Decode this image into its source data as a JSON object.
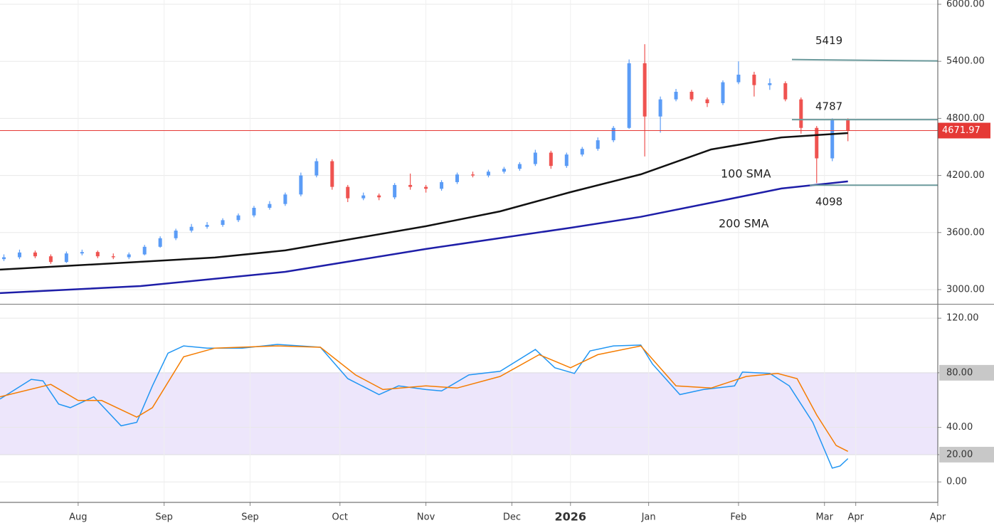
{
  "chart_data": [
    {
      "type": "candlestick",
      "xlim": [
        0,
        240
      ],
      "ylim": [
        2850,
        6045
      ],
      "yticks": [
        {
          "value": 3000,
          "label": "3000.00"
        },
        {
          "value": 3600,
          "label": "3600.00"
        },
        {
          "value": 4200,
          "label": "4200.00"
        },
        {
          "value": 4800,
          "label": "4800.00"
        },
        {
          "value": 5400,
          "label": "5400.00"
        },
        {
          "value": 6000,
          "label": "6000.00"
        }
      ],
      "grid": true,
      "up_color": "#5b9cf6",
      "down_color": "#ef5350",
      "x": [
        1,
        5,
        9,
        13,
        17,
        21,
        25,
        29,
        33,
        37,
        41,
        45,
        49,
        53,
        57,
        61,
        65,
        69,
        73,
        77,
        81,
        85,
        89,
        93,
        97,
        101,
        105,
        109,
        113,
        117,
        121,
        125,
        129,
        133,
        137,
        141,
        145,
        149,
        153,
        157,
        161,
        165,
        169,
        173,
        177,
        181,
        185,
        189,
        193,
        197,
        201,
        205,
        209,
        213,
        217
      ],
      "ohlc": [
        [
          3320,
          3370,
          3300,
          3340
        ],
        [
          3340,
          3420,
          3320,
          3390
        ],
        [
          3390,
          3410,
          3330,
          3350
        ],
        [
          3350,
          3370,
          3270,
          3290
        ],
        [
          3290,
          3400,
          3280,
          3380
        ],
        [
          3380,
          3420,
          3360,
          3395
        ],
        [
          3395,
          3410,
          3330,
          3350
        ],
        [
          3350,
          3380,
          3320,
          3340
        ],
        [
          3340,
          3390,
          3320,
          3370
        ],
        [
          3370,
          3470,
          3360,
          3450
        ],
        [
          3450,
          3560,
          3440,
          3540
        ],
        [
          3540,
          3640,
          3520,
          3620
        ],
        [
          3620,
          3690,
          3600,
          3660
        ],
        [
          3660,
          3710,
          3640,
          3680
        ],
        [
          3680,
          3750,
          3660,
          3730
        ],
        [
          3730,
          3800,
          3710,
          3780
        ],
        [
          3780,
          3880,
          3760,
          3860
        ],
        [
          3860,
          3930,
          3840,
          3900
        ],
        [
          3900,
          4020,
          3880,
          4000
        ],
        [
          4000,
          4230,
          3980,
          4200
        ],
        [
          4200,
          4380,
          4180,
          4350
        ],
        [
          4350,
          4370,
          4050,
          4080
        ],
        [
          4080,
          4100,
          3920,
          3960
        ],
        [
          3960,
          4020,
          3940,
          3990
        ],
        [
          3990,
          4010,
          3940,
          3970
        ],
        [
          3970,
          4120,
          3950,
          4100
        ],
        [
          4100,
          4220,
          4050,
          4080
        ],
        [
          4080,
          4100,
          4020,
          4060
        ],
        [
          4060,
          4150,
          4040,
          4130
        ],
        [
          4130,
          4230,
          4110,
          4210
        ],
        [
          4210,
          4240,
          4180,
          4200
        ],
        [
          4200,
          4260,
          4180,
          4240
        ],
        [
          4240,
          4290,
          4220,
          4270
        ],
        [
          4270,
          4340,
          4250,
          4320
        ],
        [
          4320,
          4470,
          4300,
          4440
        ],
        [
          4440,
          4460,
          4270,
          4300
        ],
        [
          4300,
          4440,
          4280,
          4420
        ],
        [
          4420,
          4500,
          4400,
          4480
        ],
        [
          4480,
          4600,
          4460,
          4570
        ],
        [
          4570,
          4720,
          4550,
          4700
        ],
        [
          4700,
          5420,
          4690,
          5380
        ],
        [
          5380,
          5580,
          4400,
          4820
        ],
        [
          4820,
          5030,
          4650,
          5000
        ],
        [
          5000,
          5110,
          4980,
          5080
        ],
        [
          5080,
          5100,
          4980,
          5000
        ],
        [
          5000,
          5020,
          4920,
          4960
        ],
        [
          4960,
          5200,
          4940,
          5180
        ],
        [
          5180,
          5400,
          5160,
          5260
        ],
        [
          5260,
          5290,
          5030,
          5150
        ],
        [
          5150,
          5220,
          5100,
          5170
        ],
        [
          5170,
          5190,
          4980,
          5000
        ],
        [
          5000,
          5020,
          4640,
          4700
        ],
        [
          4700,
          4720,
          4120,
          4380
        ],
        [
          4380,
          4800,
          4350,
          4780
        ],
        [
          4780,
          4800,
          4560,
          4672
        ]
      ],
      "series": [
        {
          "name": "100 SMA",
          "color": "#111111",
          "x": [
            0,
            36,
            55,
            73,
            91,
            109,
            128,
            146,
            164,
            182,
            200,
            217
          ],
          "values": [
            3210,
            3292,
            3337,
            3412,
            3539,
            3666,
            3823,
            4025,
            4212,
            4474,
            4600,
            4646
          ]
        },
        {
          "name": "200 SMA",
          "color": "#1e1ea8",
          "label_color": "#6b9a9c",
          "x": [
            0,
            36,
            73,
            109,
            146,
            164,
            182,
            200,
            217
          ],
          "values": [
            2963,
            3037,
            3187,
            3427,
            3650,
            3765,
            3913,
            4063,
            4138
          ]
        }
      ],
      "levels": [
        5419,
        4787,
        4098
      ],
      "level_color": "#6b9a9c",
      "last_price": 4671.97,
      "last_price_color": "#e53935"
    },
    {
      "type": "line",
      "xlim": [
        0,
        240
      ],
      "ylim": [
        -15,
        130
      ],
      "yticks": [
        {
          "value": 0,
          "label": "0.00"
        },
        {
          "value": 20,
          "label": "20.00"
        },
        {
          "value": 40,
          "label": "40.00"
        },
        {
          "value": 80,
          "label": "80.00"
        },
        {
          "value": 120,
          "label": "120.00"
        }
      ],
      "band": [
        20,
        80
      ],
      "band_color": "#ede6fb",
      "xticks": [
        {
          "value": 20,
          "label": "Aug"
        },
        {
          "value": 42,
          "label": "Sep"
        },
        {
          "value": 64,
          "label": "Sep"
        },
        {
          "value": 87,
          "label": "Oct"
        },
        {
          "value": 109,
          "label": "Nov"
        },
        {
          "value": 131,
          "label": "Dec"
        },
        {
          "value": 146,
          "label": "2026"
        },
        {
          "value": 166,
          "label": "Jan"
        },
        {
          "value": 189,
          "label": "Feb"
        },
        {
          "value": 211,
          "label": "Mar"
        },
        {
          "value": 219,
          "label": "Apr"
        },
        {
          "value": 240,
          "label": "Apr"
        }
      ],
      "series": [
        {
          "color": "#2196f3",
          "x": [
            0,
            8,
            11,
            15,
            18,
            24,
            31,
            35,
            39,
            43,
            47,
            53,
            62,
            71,
            82,
            89,
            97,
            102,
            109,
            113,
            120,
            128,
            137,
            142,
            147,
            151,
            157,
            164,
            167,
            174,
            180,
            188,
            190,
            197,
            202,
            208,
            213,
            215,
            217
          ],
          "values": [
            60.8,
            75.2,
            74.1,
            57.1,
            54.4,
            62.4,
            41.1,
            43.7,
            70.4,
            94.4,
            99.7,
            98.1,
            98.1,
            100.8,
            98.7,
            75.7,
            64,
            70.4,
            67.7,
            66.7,
            78.4,
            81.1,
            97.1,
            83.7,
            79.5,
            96,
            99.7,
            100.3,
            86.4,
            64,
            67.7,
            70.4,
            80.5,
            79.5,
            70.4,
            43.7,
            10.1,
            11.7,
            17.1
          ]
        },
        {
          "color": "#f57c00",
          "x": [
            0,
            13,
            20,
            26,
            35,
            39,
            47,
            55,
            71,
            82,
            91,
            98,
            109,
            117,
            128,
            138,
            146,
            153,
            164,
            173,
            182,
            191,
            199,
            204,
            209,
            214,
            217
          ],
          "values": [
            62.4,
            71.5,
            59.7,
            59.7,
            47.5,
            54.4,
            91.7,
            98.1,
            99.7,
            98.7,
            78.4,
            67.7,
            70.4,
            68.8,
            77.3,
            93.3,
            83.7,
            93.3,
            99.7,
            70.4,
            68.8,
            77.3,
            79.5,
            75.7,
            49.1,
            26.7,
            22.4
          ]
        }
      ]
    }
  ]
}
